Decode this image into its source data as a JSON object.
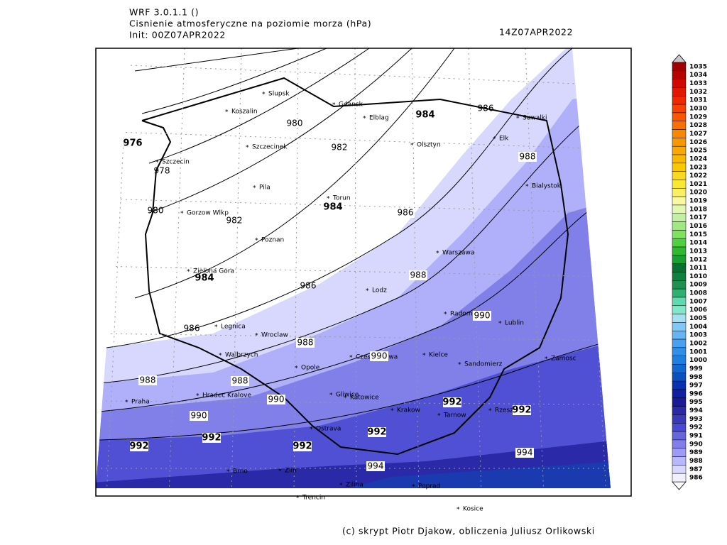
{
  "header": {
    "model": "WRF 3.0.1.1 ()",
    "title": "Cisnienie atmosferyczne na poziomie morza (hPa)",
    "init": "Init: 00Z07APR2022",
    "valid": "14Z07APR2022"
  },
  "contour_labels": [
    976,
    978,
    980,
    980,
    982,
    982,
    984,
    984,
    984,
    986,
    986,
    986,
    986,
    988,
    988,
    988,
    988,
    988,
    990,
    990,
    990,
    990,
    992,
    992,
    992,
    992,
    992,
    992,
    994,
    994
  ],
  "cities": [
    "Slupsk",
    "Koszalin",
    "Gdansk",
    "Elblag",
    "Suwalki",
    "Elk",
    "Szczecinek",
    "Olsztyn",
    "Szczecin",
    "Bialystok",
    "Pila",
    "Torun",
    "Gorzow Wlkp",
    "Poznan",
    "Warszawa",
    "Zielona Gora",
    "Lodz",
    "Radom",
    "Legnica",
    "Wroclaw",
    "Lublin",
    "Walbrzych",
    "Czestochowa",
    "Kielce",
    "Zamosc",
    "Opole",
    "Sandomierz",
    "Gliwice",
    "Katowice",
    "Hradec Kralove",
    "Praha",
    "Krakow",
    "Tarnow",
    "Rzeszow",
    "Ostrava",
    "Brno",
    "Zlin",
    "Zilina",
    "Poprad",
    "Trencin",
    "Kosice"
  ],
  "colorbar": {
    "levels": [
      1035,
      1034,
      1033,
      1032,
      1031,
      1030,
      1029,
      1028,
      1027,
      1026,
      1025,
      1024,
      1023,
      1022,
      1021,
      1020,
      1019,
      1018,
      1017,
      1016,
      1015,
      1014,
      1013,
      1012,
      1011,
      1010,
      1009,
      1008,
      1007,
      1006,
      1005,
      1004,
      1003,
      1002,
      1001,
      1000,
      999,
      998,
      997,
      996,
      995,
      994,
      993,
      992,
      991,
      990,
      989,
      988,
      987,
      986
    ],
    "colors": [
      "#a00000",
      "#b80000",
      "#d00800",
      "#e01800",
      "#f02800",
      "#f84000",
      "#f85800",
      "#f87000",
      "#f88800",
      "#f89800",
      "#f8a800",
      "#f8b800",
      "#f8c800",
      "#f8d820",
      "#f8e830",
      "#f8f060",
      "#f8f8a0",
      "#e0f8b0",
      "#c0f0a0",
      "#a0e880",
      "#80e060",
      "#50d040",
      "#30b830",
      "#18a030",
      "#087030",
      "#108040",
      "#209050",
      "#30b070",
      "#60d8b0",
      "#80e8c8",
      "#a0e0f0",
      "#80c8f8",
      "#66b4f4",
      "#4aa0f0",
      "#3090e8",
      "#2080e0",
      "#1068d0",
      "#0c50c0",
      "#0830b0",
      "#1020a0",
      "#1a1a98",
      "#2a2aa8",
      "#3a3ab8",
      "#4a4ad0",
      "#6666dd",
      "#8080e8",
      "#9c9cf5",
      "#b8b8ff",
      "#d8d8ff",
      "#f0f0ff"
    ]
  },
  "credit": "(c) skrypt Piotr Djakow, obliczenia Juliusz Orlikowski"
}
